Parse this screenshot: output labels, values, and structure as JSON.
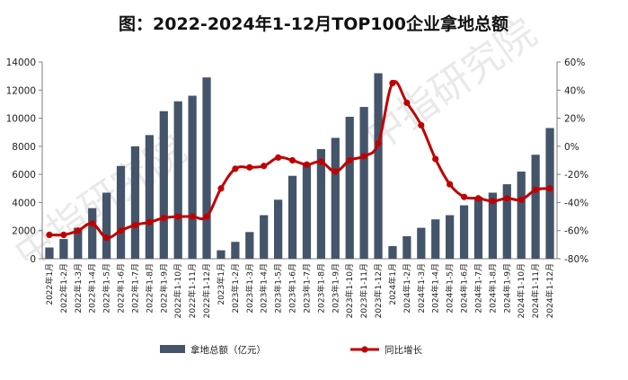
{
  "chart_data": {
    "type": "bar+line",
    "title": "图：2022-2024年1-12月TOP100企业拿地总额",
    "watermark": "中指研究院",
    "categories": [
      "2022年1月",
      "2022年1-2月",
      "2022年1-3月",
      "2022年1-4月",
      "2022年1-5月",
      "2022年1-6月",
      "2022年1-7月",
      "2022年1-8月",
      "2022年1-9月",
      "2022年1-10月",
      "2022年1-11月",
      "2022年1-12月",
      "2023年1月",
      "2023年1-2月",
      "2023年1-3月",
      "2023年1-4月",
      "2023年1-5月",
      "2023年1-6月",
      "2023年1-7月",
      "2023年1-8月",
      "2023年1-9月",
      "2023年1-10月",
      "2023年1-11月",
      "2023年1-12月",
      "2024年1月",
      "2024年1-2月",
      "2024年1-3月",
      "2024年1-4月",
      "2024年1-5月",
      "2024年1-6月",
      "2024年1-7月",
      "2024年1-8月",
      "2024年1-9月",
      "2024年1-10月",
      "2024年1-11月",
      "2024年1-12月"
    ],
    "series": [
      {
        "name": "拿地总额（亿元）",
        "type": "bar",
        "axis": "left",
        "color": "#44546a",
        "values": [
          800,
          1400,
          2200,
          3600,
          4700,
          6600,
          8000,
          8800,
          10500,
          11200,
          11600,
          12900,
          600,
          1200,
          1900,
          3100,
          4200,
          5900,
          6800,
          7800,
          8600,
          10100,
          10800,
          13200,
          900,
          1600,
          2200,
          2800,
          3100,
          3800,
          4400,
          4700,
          5300,
          6200,
          7400,
          9300
        ]
      },
      {
        "name": "同比增长",
        "type": "line",
        "axis": "right",
        "color": "#c00000",
        "values": [
          -63,
          -63,
          -60,
          -55,
          -65,
          -60,
          -56,
          -54,
          -51,
          -50,
          -50,
          -50,
          -30,
          -16,
          -15,
          -14,
          -8,
          -10,
          -13,
          -11,
          -18,
          -10,
          -7,
          2,
          45,
          31,
          15,
          -9,
          -27,
          -36,
          -37,
          -39,
          -37,
          -38,
          -31,
          -30
        ]
      }
    ],
    "y_left": {
      "min": 0,
      "max": 14000,
      "step": 2000,
      "ticks": [
        "0",
        "2000",
        "4000",
        "6000",
        "8000",
        "10000",
        "12000",
        "14000"
      ]
    },
    "y_right": {
      "min": -80,
      "max": 60,
      "step": 20,
      "ticks": [
        "-80%",
        "-60%",
        "-40%",
        "-20%",
        "0%",
        "20%",
        "40%",
        "60%"
      ]
    },
    "legend": [
      "拿地总额（亿元）",
      "同比增长"
    ],
    "legend_position": "bottom",
    "grid": false
  }
}
